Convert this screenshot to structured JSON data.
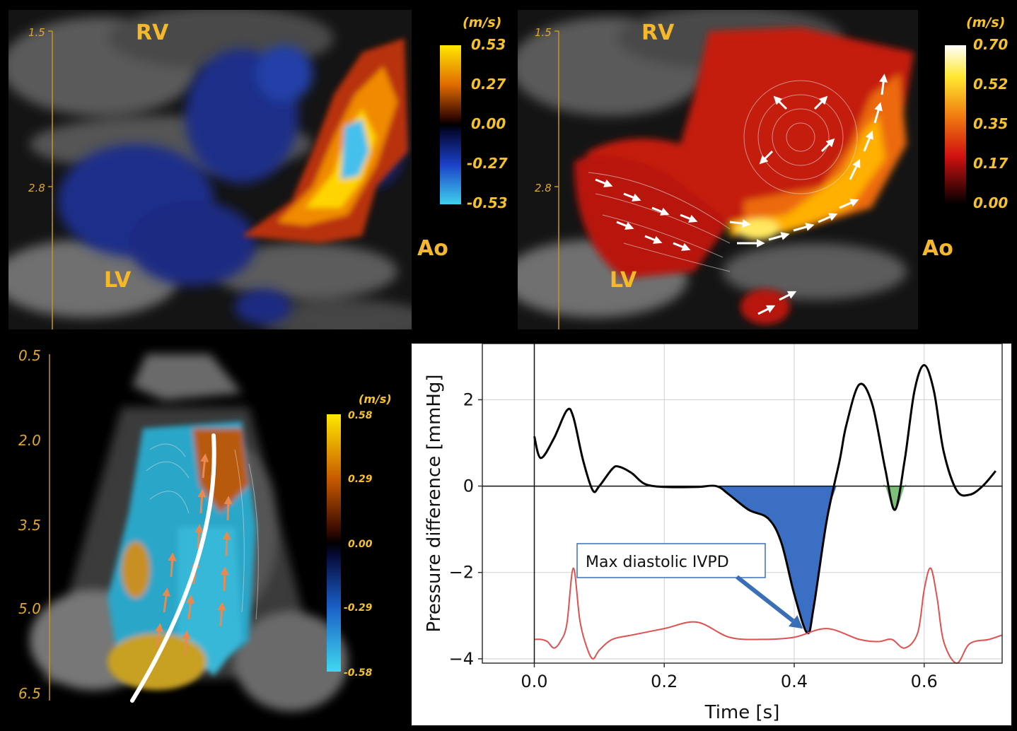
{
  "panel_top_left": {
    "labels": {
      "rv": "RV",
      "lv": "LV",
      "ao": "Ao"
    },
    "depth_ticks": [
      "1.5",
      "2.8"
    ],
    "colorbar": {
      "unit": "(m/s)",
      "ticks": [
        "0.53",
        "0.27",
        "0.00",
        "-0.27",
        "-0.53"
      ]
    }
  },
  "panel_top_right": {
    "labels": {
      "rv": "RV",
      "lv": "LV",
      "ao": "Ao"
    },
    "depth_ticks": [
      "1.5",
      "2.8"
    ],
    "colorbar": {
      "unit": "(m/s)",
      "ticks": [
        "0.70",
        "0.52",
        "0.35",
        "0.17",
        "0.00"
      ]
    }
  },
  "panel_bottom_left": {
    "depth_ticks": [
      "0.5",
      "2.0",
      "3.5",
      "5.0",
      "6.5"
    ],
    "colorbar": {
      "unit": "(m/s)",
      "ticks": [
        "0.58",
        "0.29",
        "0.00",
        "-0.29",
        "-0.58"
      ]
    }
  },
  "chart_data": {
    "type": "line",
    "xlabel": "Time [s]",
    "ylabel": "Pressure difference [mmHg]",
    "xlim": [
      -0.08,
      0.72
    ],
    "ylim": [
      -4.1,
      3.3
    ],
    "x_ticks": [
      "0.0",
      "0.2",
      "0.4",
      "0.6"
    ],
    "y_ticks": [
      "−4",
      "−2",
      "0",
      "2"
    ],
    "grid": true,
    "annotation": "Max diastolic IVPD",
    "series": [
      {
        "color": "#000000",
        "x": [
          0.0,
          0.01,
          0.03,
          0.05,
          0.06,
          0.075,
          0.09,
          0.1,
          0.12,
          0.13,
          0.15,
          0.17,
          0.2,
          0.25,
          0.28,
          0.3,
          0.33,
          0.36,
          0.38,
          0.4,
          0.42,
          0.43,
          0.45,
          0.47,
          0.48,
          0.5,
          0.52,
          0.54,
          0.555,
          0.57,
          0.585,
          0.6,
          0.615,
          0.63,
          0.65,
          0.67,
          0.69,
          0.71
        ],
        "y": [
          1.15,
          0.65,
          1.1,
          1.75,
          1.6,
          0.6,
          -0.1,
          0.0,
          0.4,
          0.45,
          0.3,
          0.05,
          -0.02,
          -0.02,
          0.0,
          -0.2,
          -0.55,
          -0.75,
          -1.3,
          -2.5,
          -3.4,
          -2.8,
          -0.8,
          0.6,
          1.4,
          2.35,
          1.9,
          0.4,
          -0.55,
          0.6,
          2.2,
          2.8,
          2.2,
          0.8,
          -0.1,
          -0.2,
          0.0,
          0.35
        ]
      },
      {
        "color": "#e05050",
        "x": [
          0.0,
          0.01,
          0.02,
          0.03,
          0.04,
          0.05,
          0.06,
          0.07,
          0.08,
          0.09,
          0.1,
          0.12,
          0.15,
          0.2,
          0.25,
          0.3,
          0.35,
          0.4,
          0.45,
          0.5,
          0.53,
          0.55,
          0.57,
          0.59,
          0.6,
          0.61,
          0.62,
          0.63,
          0.65,
          0.67,
          0.7,
          0.72
        ],
        "y": [
          -3.55,
          -3.55,
          -3.6,
          -3.75,
          -3.6,
          -3.2,
          -1.9,
          -3.1,
          -3.7,
          -4.0,
          -3.8,
          -3.55,
          -3.45,
          -3.3,
          -3.15,
          -3.5,
          -3.55,
          -3.5,
          -3.3,
          -3.55,
          -3.6,
          -3.55,
          -3.75,
          -3.4,
          -2.4,
          -1.9,
          -2.6,
          -3.6,
          -4.1,
          -3.65,
          -3.55,
          -3.45
        ]
      }
    ]
  }
}
